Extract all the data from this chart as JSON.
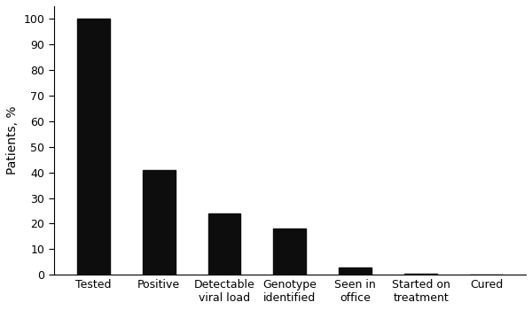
{
  "categories": [
    "Tested",
    "Positive",
    "Detectable\nviral load",
    "Genotype\nidentified",
    "Seen in\noffice",
    "Started on\ntreatment",
    "Cured"
  ],
  "values": [
    100,
    41,
    24,
    18,
    3,
    0.5,
    0
  ],
  "bar_color": "#0d0d0d",
  "ylabel": "Patients, %",
  "ylim": [
    0,
    105
  ],
  "yticks": [
    0,
    10,
    20,
    30,
    40,
    50,
    60,
    70,
    80,
    90,
    100
  ],
  "background_color": "#ffffff",
  "bar_width": 0.5,
  "tick_fontsize": 9,
  "ylabel_fontsize": 10,
  "figsize": [
    6.0,
    3.5
  ],
  "dpi": 100
}
